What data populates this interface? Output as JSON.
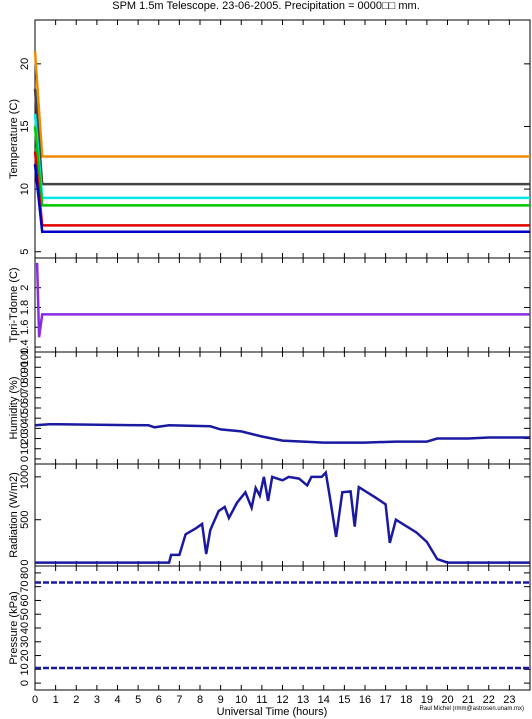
{
  "title": "SPM 1.5m Telescope. 23-06-2005. Precipitation = 0000□□ mm.",
  "credit": "Raul Michel (rmm@astrosen.unam.mx)",
  "xlabel": "Universal Time (hours)",
  "x_ticks": [
    "0",
    "1",
    "2",
    "3",
    "4",
    "5",
    "6",
    "7",
    "8",
    "9",
    "10",
    "11",
    "12",
    "13",
    "14",
    "15",
    "16",
    "17",
    "18",
    "19",
    "20",
    "21",
    "22",
    "23"
  ],
  "chart_data": [
    {
      "type": "line",
      "ylabel": "Temperature (C)",
      "ylim": [
        4.5,
        23.5
      ],
      "yticks": [
        "5",
        "10",
        "15",
        "20"
      ],
      "xlim": [
        0,
        24
      ],
      "series": [
        {
          "color": "#f08a00",
          "values": [
            [
              0,
              21
            ],
            [
              0.35,
              12.6
            ],
            [
              24,
              12.6
            ]
          ]
        },
        {
          "color": "#444444",
          "values": [
            [
              0,
              18
            ],
            [
              0.35,
              10.4
            ],
            [
              24,
              10.4
            ]
          ]
        },
        {
          "color": "#00e8e8",
          "values": [
            [
              0,
              16
            ],
            [
              0.35,
              9.3
            ],
            [
              24,
              9.3
            ]
          ]
        },
        {
          "color": "#00c800",
          "values": [
            [
              0,
              15
            ],
            [
              0.35,
              8.7
            ],
            [
              24,
              8.7
            ]
          ]
        },
        {
          "color": "#e00000",
          "values": [
            [
              0,
              13
            ],
            [
              0.35,
              7.1
            ],
            [
              24,
              7.1
            ]
          ]
        },
        {
          "color": "#0000c8",
          "values": [
            [
              0,
              12
            ],
            [
              0.35,
              6.6
            ],
            [
              24,
              6.6
            ]
          ]
        }
      ]
    },
    {
      "type": "line",
      "ylabel": "Tpri-Tdome (C)",
      "ylim": [
        1.35,
        2.3
      ],
      "yticks": [
        "1.4",
        "1.6",
        "1.8",
        "2"
      ],
      "xlim": [
        0,
        24
      ],
      "series": [
        {
          "color": "#8a2be2",
          "values": [
            [
              0.1,
              2.25
            ],
            [
              0.2,
              1.5
            ],
            [
              0.35,
              1.73
            ],
            [
              24,
              1.73
            ]
          ]
        }
      ]
    },
    {
      "type": "line",
      "ylabel": "Humidity (%)",
      "ylim": [
        -5,
        105
      ],
      "yticks": [
        "0",
        "10",
        "20",
        "30",
        "40",
        "50",
        "60",
        "70",
        "80",
        "90",
        "100"
      ],
      "xlim": [
        0,
        24
      ],
      "series": [
        {
          "color": "#1a1aa0",
          "values": [
            [
              0,
              33
            ],
            [
              0.7,
              34
            ],
            [
              1.1,
              34
            ],
            [
              5.5,
              33
            ],
            [
              5.8,
              31
            ],
            [
              6.5,
              33
            ],
            [
              8.5,
              32
            ],
            [
              9.0,
              29
            ],
            [
              10.0,
              27
            ],
            [
              11.0,
              22
            ],
            [
              12.0,
              18
            ],
            [
              14.0,
              16
            ],
            [
              16.0,
              16
            ],
            [
              17.5,
              17
            ],
            [
              19.0,
              17
            ],
            [
              19.5,
              20
            ],
            [
              21.0,
              20
            ],
            [
              22.0,
              21
            ],
            [
              24.0,
              21
            ]
          ]
        }
      ]
    },
    {
      "type": "line",
      "ylabel": "Radiation (W/m2)",
      "ylim": [
        -40,
        1150
      ],
      "yticks": [
        "0",
        "500",
        "1000"
      ],
      "xlim": [
        0,
        24
      ],
      "series": [
        {
          "color": "#1a1aa0",
          "values": [
            [
              0,
              0
            ],
            [
              6.5,
              0
            ],
            [
              6.6,
              90
            ],
            [
              7.0,
              90
            ],
            [
              7.3,
              330
            ],
            [
              7.8,
              400
            ],
            [
              8.1,
              450
            ],
            [
              8.3,
              100
            ],
            [
              8.5,
              380
            ],
            [
              8.9,
              600
            ],
            [
              9.2,
              650
            ],
            [
              9.4,
              520
            ],
            [
              9.8,
              700
            ],
            [
              10.2,
              820
            ],
            [
              10.5,
              640
            ],
            [
              10.7,
              870
            ],
            [
              10.9,
              780
            ],
            [
              11.1,
              1000
            ],
            [
              11.3,
              720
            ],
            [
              11.5,
              1000
            ],
            [
              12.0,
              960
            ],
            [
              12.3,
              1000
            ],
            [
              12.8,
              980
            ],
            [
              13.2,
              900
            ],
            [
              13.4,
              1000
            ],
            [
              13.9,
              1000
            ],
            [
              14.1,
              1050
            ],
            [
              14.3,
              760
            ],
            [
              14.6,
              300
            ],
            [
              14.9,
              820
            ],
            [
              15.3,
              830
            ],
            [
              15.5,
              420
            ],
            [
              15.7,
              880
            ],
            [
              16.5,
              760
            ],
            [
              17.0,
              680
            ],
            [
              17.2,
              230
            ],
            [
              17.5,
              500
            ],
            [
              18.5,
              350
            ],
            [
              19.0,
              240
            ],
            [
              19.5,
              40
            ],
            [
              20.0,
              0
            ],
            [
              24,
              0
            ]
          ]
        }
      ]
    },
    {
      "type": "scatter",
      "ylabel": "Pressure (kPa)",
      "ylim": [
        -5,
        85
      ],
      "yticks": [
        "0",
        "10",
        "20",
        "30",
        "40",
        "50",
        "60",
        "70",
        "80"
      ],
      "xlim": [
        0,
        24
      ],
      "series": [
        {
          "color": "#1a1aa0",
          "values": [
            [
              0,
              73
            ],
            [
              24,
              73
            ]
          ]
        },
        {
          "color": "#1a1aa0",
          "values": [
            [
              0,
              11
            ],
            [
              24,
              11
            ]
          ]
        }
      ]
    }
  ]
}
